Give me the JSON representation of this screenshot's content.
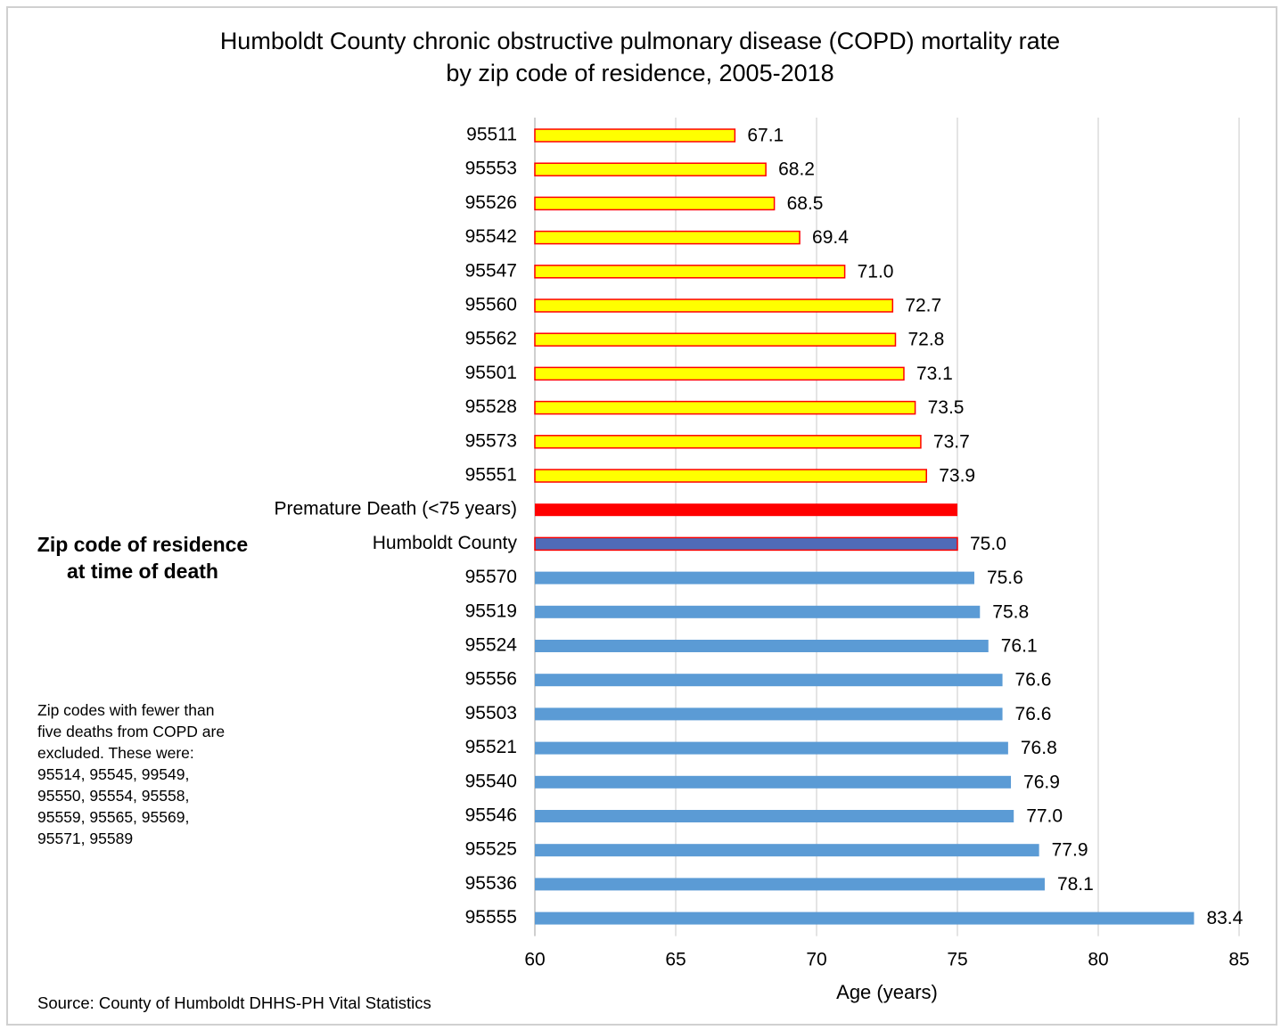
{
  "chart_data": {
    "type": "barh",
    "title": [
      "Humboldt County chronic obstructive pulmonary disease (COPD) mortality rate",
      "by zip code of residence, 2005-2018"
    ],
    "ylabel": "Zip code of residence at time of death",
    "xlabel": "Age (years)",
    "note": "Zip codes with fewer than five deaths from COPD are excluded. These were:  95514, 95545, 99549, 95550, 95554, 95558, 95559, 95565, 95569, 95571, 95589",
    "source": "Source:  County of Humboldt  DHHS-PH Vital Statistics",
    "categories": [
      "95511",
      "95553",
      "95526",
      "95542",
      "95547",
      "95560",
      "95562",
      "95501",
      "95528",
      "95573",
      "95551",
      "Premature Death (<75 years)",
      "Humboldt County",
      "95570",
      "95519",
      "95524",
      "95556",
      "95503",
      "95521",
      "95540",
      "95546",
      "95525",
      "95536",
      "95555"
    ],
    "values": [
      67.1,
      68.2,
      68.5,
      69.4,
      71,
      72.7,
      72.8,
      73.1,
      73.5,
      73.7,
      73.9,
      75,
      75,
      75.6,
      75.8,
      76.1,
      76.6,
      76.6,
      76.8,
      76.9,
      77,
      77.9,
      78.1,
      83.4
    ],
    "value_labels": [
      "67.1",
      "68.2",
      "68.5",
      "69.4",
      "71.0",
      "72.7",
      "72.8",
      "73.1",
      "73.5",
      "73.7",
      "73.9",
      null,
      "75.0",
      "75.6",
      "75.8",
      "76.1",
      "76.6",
      "76.6",
      "76.8",
      "76.9",
      "77.0",
      "77.9",
      "78.1",
      "83.4"
    ],
    "colors": [
      "#ffff00",
      "#ffff00",
      "#ffff00",
      "#ffff00",
      "#ffff00",
      "#ffff00",
      "#ffff00",
      "#ffff00",
      "#ffff00",
      "#ffff00",
      "#ffff00",
      "#ff0000",
      "#4f6bb8",
      "#5b9bd5",
      "#5b9bd5",
      "#5b9bd5",
      "#5b9bd5",
      "#5b9bd5",
      "#5b9bd5",
      "#5b9bd5",
      "#5b9bd5",
      "#5b9bd5",
      "#5b9bd5",
      "#5b9bd5"
    ],
    "edge_colors": [
      "#ff0000",
      "#ff0000",
      "#ff0000",
      "#ff0000",
      "#ff0000",
      "#ff0000",
      "#ff0000",
      "#ff0000",
      "#ff0000",
      "#ff0000",
      "#ff0000",
      null,
      "#ff0000",
      null,
      null,
      null,
      null,
      null,
      null,
      null,
      null,
      null,
      null,
      null
    ],
    "xlim": [
      60,
      85
    ],
    "xticks": [
      60,
      65,
      70,
      75,
      80,
      85
    ],
    "grid": true
  }
}
